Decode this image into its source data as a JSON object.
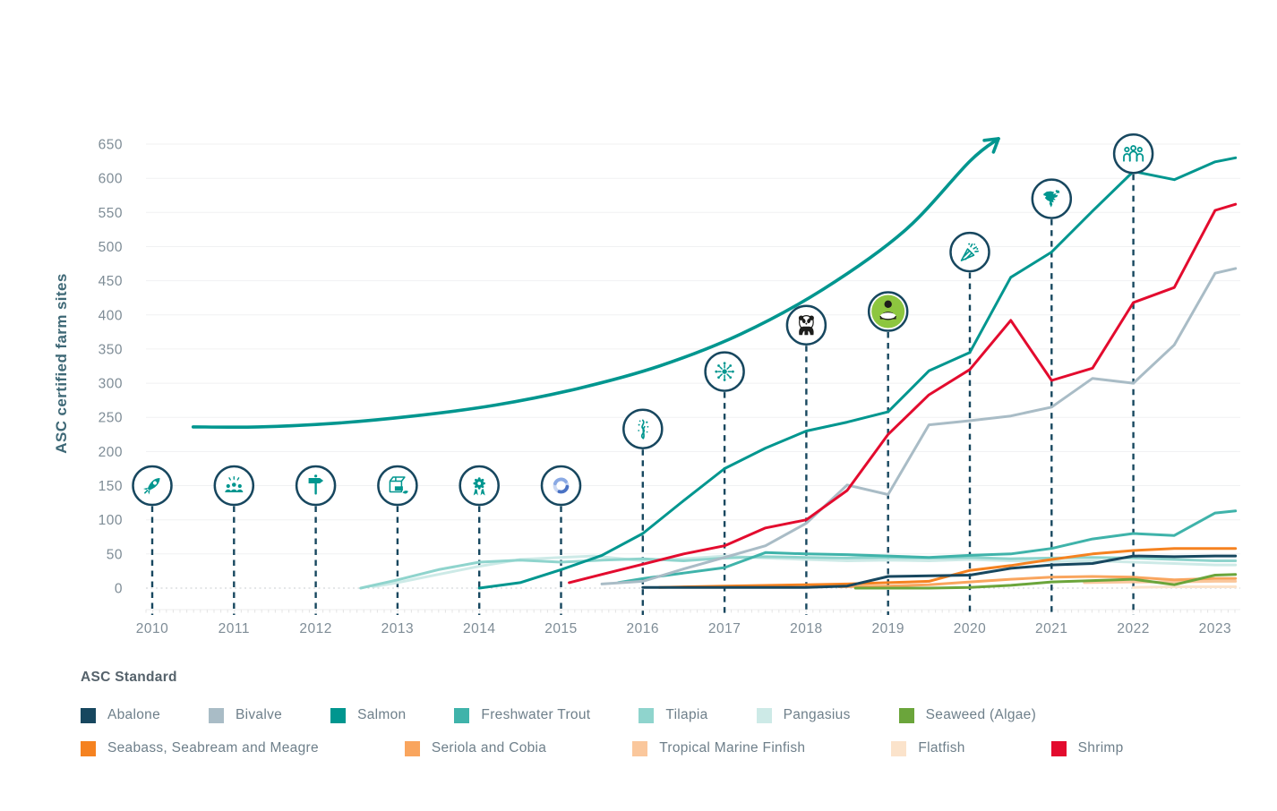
{
  "chart": {
    "y_axis_label": "ASC certified farm sites"
  },
  "legend": {
    "title": "ASC Standard",
    "rows": [
      [
        {
          "label": "Abalone",
          "color": "#17475f"
        },
        {
          "label": "Bivalve",
          "color": "#a9bcc6"
        },
        {
          "label": "Salmon",
          "color": "#00968f"
        },
        {
          "label": "Freshwater Trout",
          "color": "#3fb3aa"
        },
        {
          "label": "Tilapia",
          "color": "#8fd4cd"
        },
        {
          "label": "Pangasius",
          "color": "#cdeae7"
        },
        {
          "label": "Seaweed (Algae)",
          "color": "#6ba53b"
        }
      ],
      [
        {
          "label": "Seabass, Seabream and Meagre",
          "color": "#f58220"
        },
        {
          "label": "Seriola and Cobia",
          "color": "#f9a55e"
        },
        {
          "label": "Tropical Marine Finfish",
          "color": "#fac79c"
        },
        {
          "label": "Flatfish",
          "color": "#fbe3cb"
        },
        {
          "label": "Shrimp",
          "color": "#e30b2e"
        }
      ]
    ]
  },
  "chart_data": {
    "type": "line",
    "title": "",
    "xlabel": "",
    "ylabel": "ASC certified farm sites",
    "x_ticks": [
      2010,
      2011,
      2012,
      2013,
      2014,
      2015,
      2016,
      2017,
      2018,
      2019,
      2020,
      2021,
      2022,
      2023
    ],
    "y_ticks": [
      0,
      50,
      100,
      150,
      200,
      250,
      300,
      350,
      400,
      450,
      500,
      550,
      600,
      650
    ],
    "ylim": [
      0,
      650
    ],
    "grid": true,
    "legend_position": "bottom",
    "series": [
      {
        "name": "Pangasius",
        "color": "#cdeae7",
        "points": [
          [
            2012.7,
            2
          ],
          [
            2013,
            8
          ],
          [
            2013.5,
            20
          ],
          [
            2014,
            32
          ],
          [
            2014.5,
            42
          ],
          [
            2015,
            45
          ],
          [
            2015.4,
            47
          ],
          [
            2016,
            40
          ],
          [
            2016.5,
            43
          ],
          [
            2017,
            47
          ],
          [
            2017.5,
            44
          ],
          [
            2018,
            42
          ],
          [
            2018.5,
            40
          ],
          [
            2019,
            41
          ],
          [
            2019.5,
            40
          ],
          [
            2020,
            42
          ],
          [
            2020.5,
            40
          ],
          [
            2021,
            39
          ],
          [
            2021.5,
            40
          ],
          [
            2022,
            38
          ],
          [
            2022.5,
            36
          ],
          [
            2023,
            34
          ],
          [
            2023.25,
            34
          ]
        ]
      },
      {
        "name": "Tilapia",
        "color": "#8fd4cd",
        "points": [
          [
            2012.55,
            0
          ],
          [
            2013,
            12
          ],
          [
            2013.5,
            27
          ],
          [
            2014,
            38
          ],
          [
            2014.5,
            41
          ],
          [
            2015,
            38
          ],
          [
            2015.5,
            41
          ],
          [
            2016,
            43
          ],
          [
            2016.5,
            40
          ],
          [
            2017,
            44
          ],
          [
            2017.5,
            46
          ],
          [
            2018,
            45
          ],
          [
            2018.5,
            44
          ],
          [
            2019,
            45
          ],
          [
            2019.5,
            44
          ],
          [
            2020,
            45
          ],
          [
            2020.5,
            43
          ],
          [
            2021,
            44
          ],
          [
            2021.5,
            45
          ],
          [
            2022,
            44
          ],
          [
            2022.5,
            42
          ],
          [
            2023,
            40
          ],
          [
            2023.25,
            40
          ]
        ]
      },
      {
        "name": "Freshwater Trout",
        "color": "#3fb3aa",
        "points": [
          [
            2015.7,
            8
          ],
          [
            2016,
            14
          ],
          [
            2016.5,
            22
          ],
          [
            2017,
            30
          ],
          [
            2017.5,
            52
          ],
          [
            2018,
            50
          ],
          [
            2018.5,
            49
          ],
          [
            2019,
            47
          ],
          [
            2019.5,
            45
          ],
          [
            2020,
            48
          ],
          [
            2020.5,
            50
          ],
          [
            2021,
            58
          ],
          [
            2021.5,
            72
          ],
          [
            2022,
            80
          ],
          [
            2022.5,
            77
          ],
          [
            2023,
            110
          ],
          [
            2023.25,
            113
          ]
        ]
      },
      {
        "name": "Flatfish",
        "color": "#fbe3cb",
        "points": [
          [
            2022,
            1
          ],
          [
            2022.5,
            2
          ],
          [
            2023,
            2
          ],
          [
            2023.25,
            2
          ]
        ]
      },
      {
        "name": "Tropical Marine Finfish",
        "color": "#fac79c",
        "points": [
          [
            2021.4,
            8
          ],
          [
            2022,
            9
          ],
          [
            2022.5,
            9
          ],
          [
            2023,
            10
          ],
          [
            2023.25,
            10
          ]
        ]
      },
      {
        "name": "Seriola and Cobia",
        "color": "#f9a55e",
        "points": [
          [
            2018.4,
            2
          ],
          [
            2019,
            3
          ],
          [
            2019.5,
            5
          ],
          [
            2020,
            9
          ],
          [
            2020.5,
            13
          ],
          [
            2021,
            16
          ],
          [
            2021.5,
            17
          ],
          [
            2022,
            16
          ],
          [
            2022.5,
            12
          ],
          [
            2023,
            14
          ],
          [
            2023.25,
            14
          ]
        ]
      },
      {
        "name": "Seaweed (Algae)",
        "color": "#6ba53b",
        "points": [
          [
            2018.6,
            0
          ],
          [
            2019,
            0
          ],
          [
            2019.5,
            0
          ],
          [
            2020,
            1
          ],
          [
            2020.5,
            4
          ],
          [
            2021,
            9
          ],
          [
            2021.5,
            11
          ],
          [
            2022,
            13
          ],
          [
            2022.5,
            5
          ],
          [
            2023,
            19
          ],
          [
            2023.25,
            20
          ]
        ]
      },
      {
        "name": "Seabass, Seabream and Meagre",
        "color": "#f58220",
        "points": [
          [
            2016.2,
            1
          ],
          [
            2017,
            3
          ],
          [
            2018,
            5
          ],
          [
            2018.5,
            6
          ],
          [
            2019,
            8
          ],
          [
            2019.5,
            10
          ],
          [
            2020,
            26
          ],
          [
            2020.5,
            33
          ],
          [
            2021,
            42
          ],
          [
            2021.5,
            50
          ],
          [
            2022,
            55
          ],
          [
            2022.5,
            58
          ],
          [
            2023,
            58
          ],
          [
            2023.25,
            58
          ]
        ]
      },
      {
        "name": "Abalone",
        "color": "#17475f",
        "points": [
          [
            2016,
            1
          ],
          [
            2017,
            1
          ],
          [
            2018,
            1
          ],
          [
            2018.5,
            3
          ],
          [
            2019,
            17
          ],
          [
            2019.5,
            18
          ],
          [
            2020,
            19
          ],
          [
            2020.5,
            29
          ],
          [
            2021,
            34
          ],
          [
            2021.5,
            36
          ],
          [
            2022,
            47
          ],
          [
            2022.5,
            46
          ],
          [
            2023,
            47
          ],
          [
            2023.25,
            47
          ]
        ]
      },
      {
        "name": "Bivalve",
        "color": "#a9bcc6",
        "points": [
          [
            2015.5,
            6
          ],
          [
            2016,
            10
          ],
          [
            2016.5,
            28
          ],
          [
            2017,
            45
          ],
          [
            2017.5,
            62
          ],
          [
            2018,
            95
          ],
          [
            2018.5,
            151
          ],
          [
            2019,
            137
          ],
          [
            2019.5,
            239
          ],
          [
            2020,
            245
          ],
          [
            2020.5,
            252
          ],
          [
            2021,
            265
          ],
          [
            2021.5,
            307
          ],
          [
            2022,
            300
          ],
          [
            2022.5,
            356
          ],
          [
            2023,
            461
          ],
          [
            2023.25,
            468
          ]
        ]
      },
      {
        "name": "Shrimp",
        "color": "#e30b2e",
        "points": [
          [
            2015.1,
            8
          ],
          [
            2015.5,
            20
          ],
          [
            2016,
            35
          ],
          [
            2016.5,
            50
          ],
          [
            2017,
            62
          ],
          [
            2017.5,
            88
          ],
          [
            2018,
            100
          ],
          [
            2018.5,
            143
          ],
          [
            2019,
            225
          ],
          [
            2019.5,
            283
          ],
          [
            2020,
            320
          ],
          [
            2020.5,
            392
          ],
          [
            2021,
            304
          ],
          [
            2021.5,
            322
          ],
          [
            2022,
            418
          ],
          [
            2022.5,
            440
          ],
          [
            2023,
            553
          ],
          [
            2023.25,
            562
          ]
        ]
      },
      {
        "name": "Salmon",
        "color": "#00968f",
        "points": [
          [
            2014,
            0
          ],
          [
            2014.5,
            8
          ],
          [
            2015,
            27
          ],
          [
            2015.5,
            48
          ],
          [
            2016,
            80
          ],
          [
            2016.5,
            128
          ],
          [
            2017,
            175
          ],
          [
            2017.5,
            205
          ],
          [
            2018,
            230
          ],
          [
            2018.5,
            243
          ],
          [
            2019,
            258
          ],
          [
            2019.5,
            318
          ],
          [
            2020,
            345
          ],
          [
            2020.5,
            455
          ],
          [
            2021,
            492
          ],
          [
            2021.5,
            552
          ],
          [
            2022,
            610
          ],
          [
            2022.5,
            598
          ],
          [
            2023,
            624
          ],
          [
            2023.25,
            630
          ]
        ]
      }
    ],
    "trend_arrow": {
      "color": "#00968f",
      "points": [
        [
          2010.5,
          236
        ],
        [
          2011.3,
          236
        ],
        [
          2012.2,
          241
        ],
        [
          2013.2,
          252
        ],
        [
          2014.2,
          268
        ],
        [
          2015.2,
          292
        ],
        [
          2016.2,
          325
        ],
        [
          2017.2,
          372
        ],
        [
          2018.2,
          437
        ],
        [
          2019.2,
          523
        ],
        [
          2020,
          625
        ],
        [
          2020.35,
          658
        ]
      ]
    },
    "milestones": [
      {
        "year": 2010,
        "value": 150,
        "icon": "rocket"
      },
      {
        "year": 2011,
        "value": 150,
        "icon": "audience"
      },
      {
        "year": 2012,
        "value": 150,
        "icon": "signpost"
      },
      {
        "year": 2013,
        "value": 150,
        "icon": "package"
      },
      {
        "year": 2014,
        "value": 150,
        "icon": "award"
      },
      {
        "year": 2015,
        "value": 150,
        "icon": "ring"
      },
      {
        "year": 2016,
        "value": 233,
        "icon": "seaweed"
      },
      {
        "year": 2017,
        "value": 317,
        "icon": "network"
      },
      {
        "year": 2018,
        "value": 385,
        "icon": "panda"
      },
      {
        "year": 2019,
        "value": 405,
        "icon": "farmer"
      },
      {
        "year": 2020,
        "value": 492,
        "icon": "party-popper"
      },
      {
        "year": 2021,
        "value": 570,
        "icon": "north-america"
      },
      {
        "year": 2022,
        "value": 636,
        "icon": "team"
      }
    ]
  }
}
